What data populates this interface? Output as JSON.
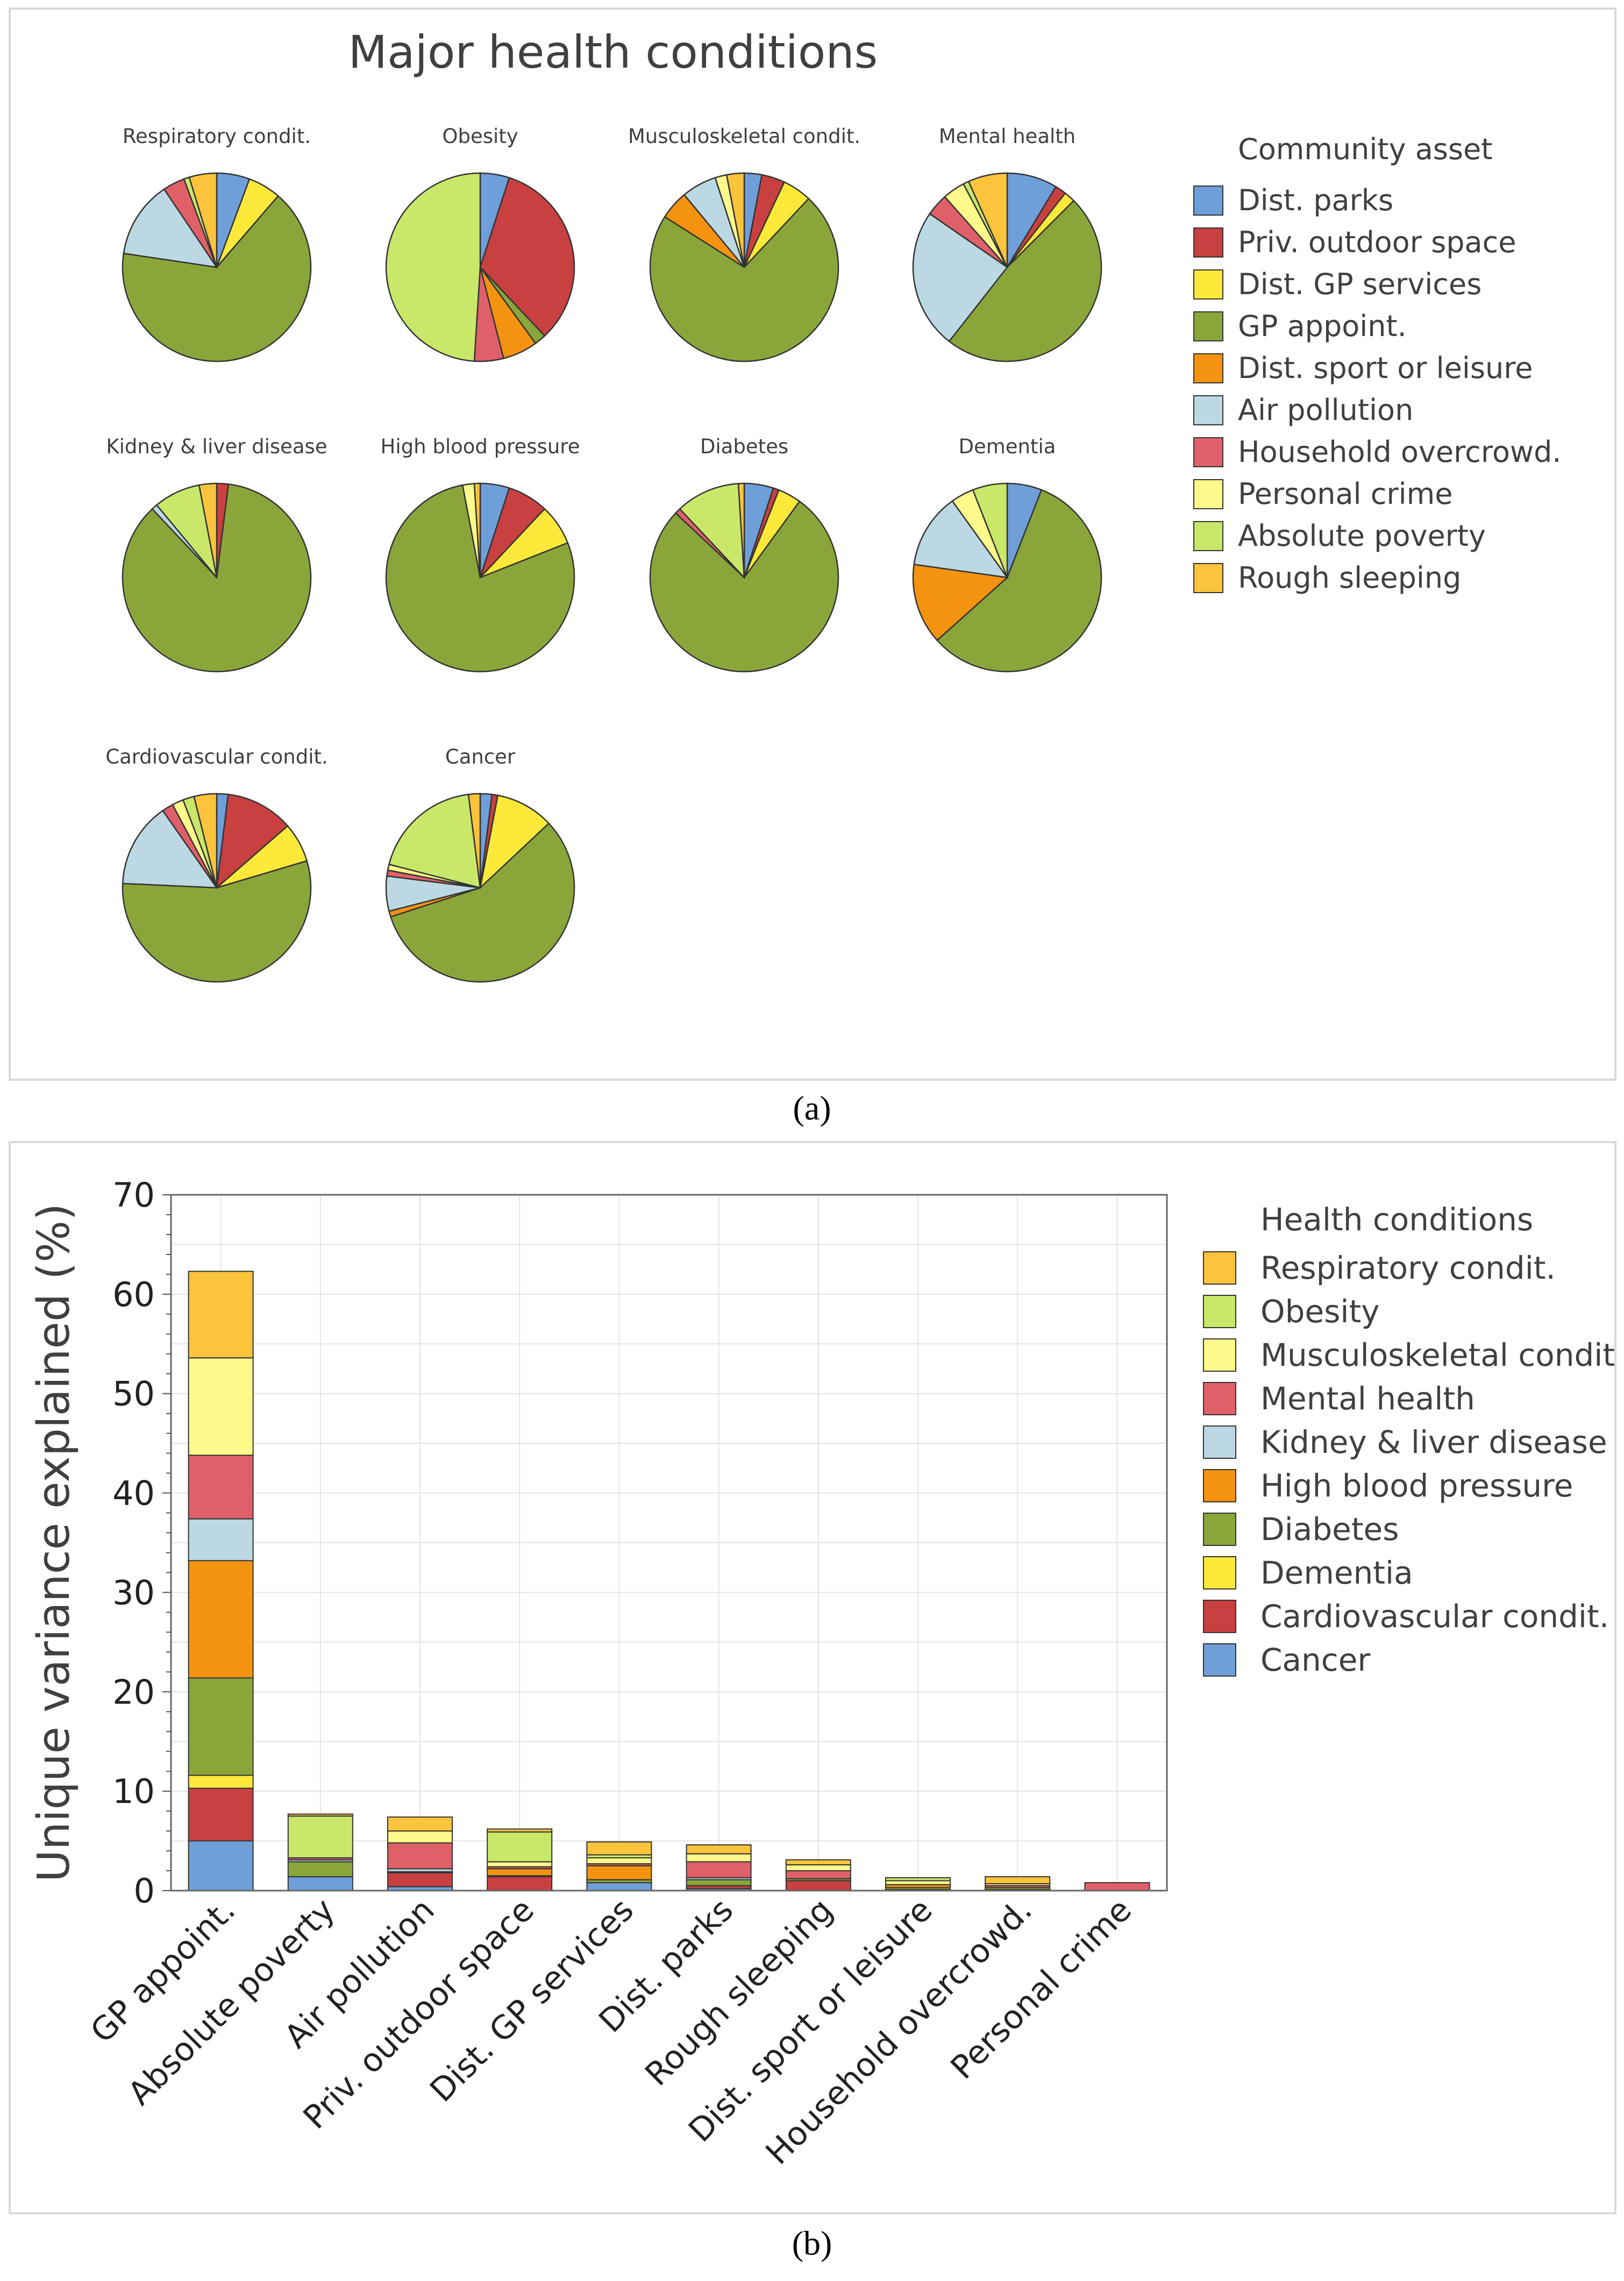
{
  "captions": {
    "a": "(a)",
    "b": "(b)"
  },
  "colors": {
    "community_asset": {
      "Dist. parks": "#6f9fd8",
      "Priv. outdoor space": "#c84040",
      "Dist. GP services": "#fde93a",
      "GP appoint.": "#8aa63a",
      "Dist. sport or leisure": "#f4930f",
      "Air pollution": "#bcd9e3",
      "Household overcrowd.": "#e0606a",
      "Personal crime": "#fdf98a",
      "Absolute poverty": "#c9e86a",
      "Rough sleeping": "#fbc43c"
    },
    "health_condition": {
      "Respiratory condit.": "#fbc43c",
      "Obesity": "#c9e86a",
      "Musculoskeletal condit.": "#fdf98a",
      "Mental  health": "#e0606a",
      "Kidney & liver disease": "#bcd9e3",
      "High blood pressure": "#f4930f",
      "Diabetes": "#8aa63a",
      "Dementia": "#fde93a",
      "Cardiovascular condit.": "#c84040",
      "Cancer": "#6f9fd8"
    }
  },
  "chart_data": [
    {
      "type": "pie",
      "title": "Major health conditions",
      "legend_title": "Community asset",
      "legend": [
        "Dist. parks",
        "Priv. outdoor space",
        "Dist. GP services",
        "GP appoint.",
        "Dist. sport or leisure",
        "Air pollution",
        "Household overcrowd.",
        "Personal crime",
        "Absolute poverty",
        "Rough sleeping"
      ],
      "pies": [
        {
          "title": "Respiratory condit.",
          "values": [
            6,
            0,
            6,
            70,
            0,
            14,
            4,
            0,
            1,
            5
          ]
        },
        {
          "title": "Obesity",
          "values": [
            5,
            33,
            0,
            2,
            6,
            0,
            5,
            0,
            49,
            0
          ]
        },
        {
          "title": "Musculoskeletal condit.",
          "values": [
            3,
            4,
            5,
            72,
            5,
            6,
            0,
            2,
            0,
            3
          ]
        },
        {
          "title": "Mental  health",
          "values": [
            9,
            2,
            2,
            50,
            0,
            25,
            4,
            4,
            1,
            7
          ]
        },
        {
          "title": "Kidney & liver disease",
          "values": [
            0,
            2,
            0,
            86,
            0,
            1,
            0,
            0,
            8,
            3
          ]
        },
        {
          "title": "High blood pressure",
          "values": [
            5,
            7,
            7,
            78,
            0,
            0,
            0,
            2,
            0,
            1
          ]
        },
        {
          "title": "Diabetes",
          "values": [
            5,
            1,
            4,
            77,
            0,
            0,
            1,
            0,
            11,
            1
          ]
        },
        {
          "title": "Dementia",
          "values": [
            6,
            0,
            0,
            58,
            14,
            13,
            0,
            4,
            6,
            0
          ]
        },
        {
          "title": "Cardiovascular condit.",
          "values": [
            2,
            12,
            7,
            57,
            0,
            15,
            2,
            2,
            2,
            4
          ]
        },
        {
          "title": "Cancer",
          "values": [
            2,
            1,
            10,
            57,
            1,
            6,
            1,
            1,
            19,
            2
          ]
        }
      ]
    },
    {
      "type": "bar",
      "stacked": true,
      "ylabel": "Unique variance explained (%)",
      "ylim": [
        0,
        70
      ],
      "yticks": [
        "0",
        "10",
        "20",
        "30",
        "40",
        "50",
        "60",
        "70"
      ],
      "legend_title": "Health conditions",
      "legend": [
        "Respiratory condit.",
        "Obesity",
        "Musculoskeletal condit.",
        "Mental  health",
        "Kidney & liver disease",
        "High blood pressure",
        "Diabetes",
        "Dementia",
        "Cardiovascular condit.",
        "Cancer"
      ],
      "categories": [
        "GP appoint.",
        "Absolute poverty",
        "Air pollution",
        "Priv. outdoor space",
        "Dist. GP services",
        "Dist. parks",
        "Rough sleeping",
        "Dist. sport or leisure",
        "Household overcrowd.",
        "Personal crime"
      ],
      "series": [
        {
          "name": "Cancer",
          "values": [
            5.0,
            1.4,
            0.4,
            0,
            0.8,
            0.2,
            0,
            0,
            0,
            0
          ]
        },
        {
          "name": "Cardiovascular condit.",
          "values": [
            5.3,
            0,
            1.4,
            1.4,
            0,
            0.3,
            1.0,
            0.1,
            0.1,
            0
          ]
        },
        {
          "name": "Dementia",
          "values": [
            1.3,
            0,
            0,
            0,
            0,
            0,
            0,
            0,
            0,
            0
          ]
        },
        {
          "name": "Diabetes",
          "values": [
            9.8,
            1.5,
            0.1,
            0.1,
            0.3,
            0.6,
            0.2,
            0.2,
            0.2,
            0
          ]
        },
        {
          "name": "High blood pressure",
          "values": [
            11.8,
            0,
            0,
            0.7,
            1.4,
            0,
            0,
            0.3,
            0,
            0
          ]
        },
        {
          "name": "Kidney & liver disease",
          "values": [
            4.2,
            0.2,
            0.3,
            0,
            0,
            0.2,
            0,
            0,
            0,
            0
          ]
        },
        {
          "name": "Mental  health",
          "values": [
            6.4,
            0.2,
            2.6,
            0.2,
            0.2,
            1.6,
            0.8,
            0,
            0.2,
            0.8
          ]
        },
        {
          "name": "Musculoskeletal condit.",
          "values": [
            9.8,
            0,
            1.2,
            0.5,
            0.6,
            0.8,
            0.6,
            0.4,
            0.2,
            0
          ]
        },
        {
          "name": "Obesity",
          "values": [
            0,
            4.2,
            0,
            3.0,
            0.3,
            0,
            0,
            0.3,
            0,
            0
          ]
        },
        {
          "name": "Respiratory condit.",
          "values": [
            8.7,
            0.2,
            1.4,
            0.3,
            1.3,
            0.9,
            0.5,
            0,
            0.7,
            0
          ]
        }
      ]
    }
  ]
}
